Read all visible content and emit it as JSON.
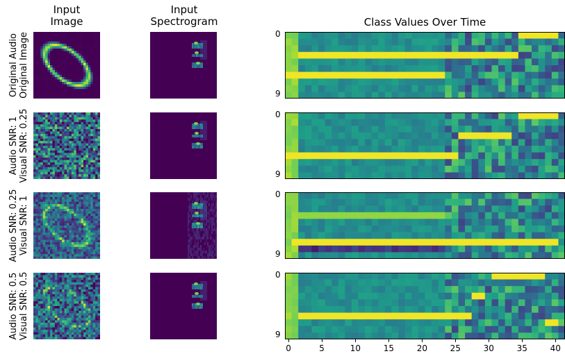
{
  "column_titles": {
    "input_image": [
      "Input",
      "Image"
    ],
    "input_spectrogram": [
      "Input",
      "Spectrogram"
    ],
    "class_values": "Class Values Over Time"
  },
  "rows": [
    {
      "label_lines": [
        "Original Audio",
        "Original Image"
      ],
      "y_tick_top": "0",
      "y_tick_bottom": "9"
    },
    {
      "label_lines": [
        "Audio SNR: 1",
        "Visual SNR: 0.25"
      ],
      "y_tick_top": "0",
      "y_tick_bottom": "9"
    },
    {
      "label_lines": [
        "Audio SNR: 0.25",
        "Visual SNR: 1"
      ],
      "y_tick_top": "0",
      "y_tick_bottom": "9"
    },
    {
      "label_lines": [
        "Audio SNR: 0.5",
        "Visual SNR: 0.5"
      ],
      "y_tick_top": "0",
      "y_tick_bottom": "9"
    }
  ],
  "x_ticks": [
    "0",
    "5",
    "10",
    "15",
    "20",
    "25",
    "30",
    "35",
    "40"
  ],
  "colors": {
    "viridis_dark": "#440154",
    "viridis_teal": "#21918c",
    "viridis_green": "#5ec962",
    "viridis_yellow": "#fde725"
  },
  "chart_data": {
    "type": "heatmap",
    "title": "Class Values Over Time",
    "xlabel": "",
    "ylabel": "",
    "x_range": [
      0,
      41
    ],
    "y_range": [
      0,
      9
    ],
    "panels": [
      {
        "name": "Original Audio / Original Image",
        "segments": [
          {
            "class": 0,
            "from": 35,
            "to": 41,
            "level": 1.0
          },
          {
            "class": 3,
            "from": 2,
            "to": 35,
            "level": 1.0
          },
          {
            "class": 6,
            "from": 0,
            "to": 24,
            "level": 1.0
          }
        ]
      },
      {
        "name": "Audio SNR: 1 / Visual SNR: 0.25",
        "segments": [
          {
            "class": 0,
            "from": 35,
            "to": 41,
            "level": 1.0
          },
          {
            "class": 3,
            "from": 26,
            "to": 34,
            "level": 1.0
          },
          {
            "class": 6,
            "from": 0,
            "to": 26,
            "level": 1.0
          }
        ]
      },
      {
        "name": "Audio SNR: 0.25 / Visual SNR: 1",
        "segments": [
          {
            "class": 7,
            "from": 1,
            "to": 41,
            "level": 1.0
          },
          {
            "class": 3,
            "from": 2,
            "to": 24,
            "level": 0.85
          }
        ]
      },
      {
        "name": "Audio SNR: 0.5 / Visual SNR: 0.5",
        "segments": [
          {
            "class": 0,
            "from": 31,
            "to": 39,
            "level": 1.0
          },
          {
            "class": 6,
            "from": 2,
            "to": 28,
            "level": 1.0
          },
          {
            "class": 3,
            "from": 28,
            "to": 30,
            "level": 1.0
          },
          {
            "class": 7,
            "from": 39,
            "to": 41,
            "level": 1.0
          }
        ]
      }
    ]
  }
}
